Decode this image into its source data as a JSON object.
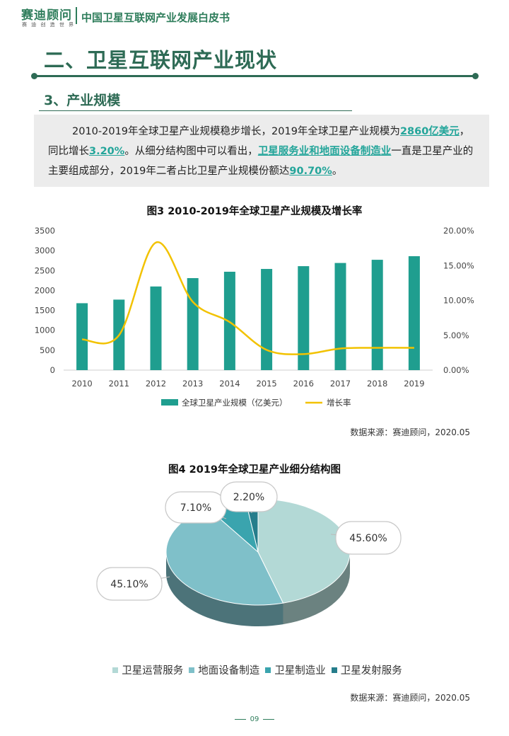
{
  "header": {
    "logo": "赛迪顾问",
    "logo_sub": "赛 迪 创 造 世 界",
    "title": "中国卫星互联网产业发展白皮书"
  },
  "section": {
    "title": "二、卫星互联网产业现状",
    "subtitle": "3、产业规模"
  },
  "paragraph": {
    "t1": "2010-2019年全球卫星产业规模稳步增长，2019年全球卫星产业规模为",
    "h1": "2860亿美元",
    "t2": "，同比增长",
    "h2": "3.20%",
    "t3": "。从细分结构图中可以看出，",
    "h3": "卫星服务业和地面设备制造业",
    "t4": "一直是卫星产业的主要组成部分，2019年二者占比卫星产业规模份额达",
    "h4": "90.70%",
    "t5": "。"
  },
  "figure3": {
    "title": "图3  2010-2019年全球卫星产业规模及增长率",
    "source": "数据来源：赛迪顾问，2020.05"
  },
  "figure4": {
    "title": "图4  2019年全球卫星产业细分结构图",
    "source": "数据来源：赛迪顾问，2020.05"
  },
  "page_number": "09",
  "chart_data": [
    {
      "type": "bar",
      "categories": [
        "2010",
        "2011",
        "2012",
        "2013",
        "2014",
        "2015",
        "2016",
        "2017",
        "2018",
        "2019"
      ],
      "series": [
        {
          "name": "全球卫星产业规模（亿美元）",
          "type": "bar",
          "axis": "left",
          "values": [
            1680,
            1770,
            2100,
            2310,
            2470,
            2540,
            2610,
            2690,
            2770,
            2860
          ]
        },
        {
          "name": "增长率",
          "type": "line",
          "axis": "right",
          "smooth": true,
          "values": [
            4.4,
            5.0,
            18.3,
            9.8,
            6.9,
            2.9,
            2.3,
            3.1,
            3.2,
            3.2
          ]
        }
      ],
      "ylim": [
        0,
        3500
      ],
      "yticks": [
        "0",
        "500",
        "1000",
        "1500",
        "2000",
        "2500",
        "3000",
        "3500"
      ],
      "y2lim": [
        0,
        20
      ],
      "y2ticks": [
        "0.00%",
        "5.00%",
        "10.00%",
        "15.00%",
        "20.00%"
      ],
      "colors": {
        "bar": "#1f9e8f",
        "line": "#f2c200"
      },
      "legend_position": "bottom",
      "grid": false
    },
    {
      "type": "pie",
      "style": "3d",
      "labels": [
        "卫星运营服务",
        "地面设备制造",
        "卫星制造业",
        "卫星发射服务"
      ],
      "values": [
        45.6,
        45.1,
        7.1,
        2.2
      ],
      "value_labels": [
        "45.60%",
        "45.10%",
        "7.10%",
        "2.20%"
      ],
      "colors": [
        "#b3d9d6",
        "#7fc0c9",
        "#3aa4ae",
        "#257d8b"
      ],
      "legend_position": "bottom"
    }
  ]
}
